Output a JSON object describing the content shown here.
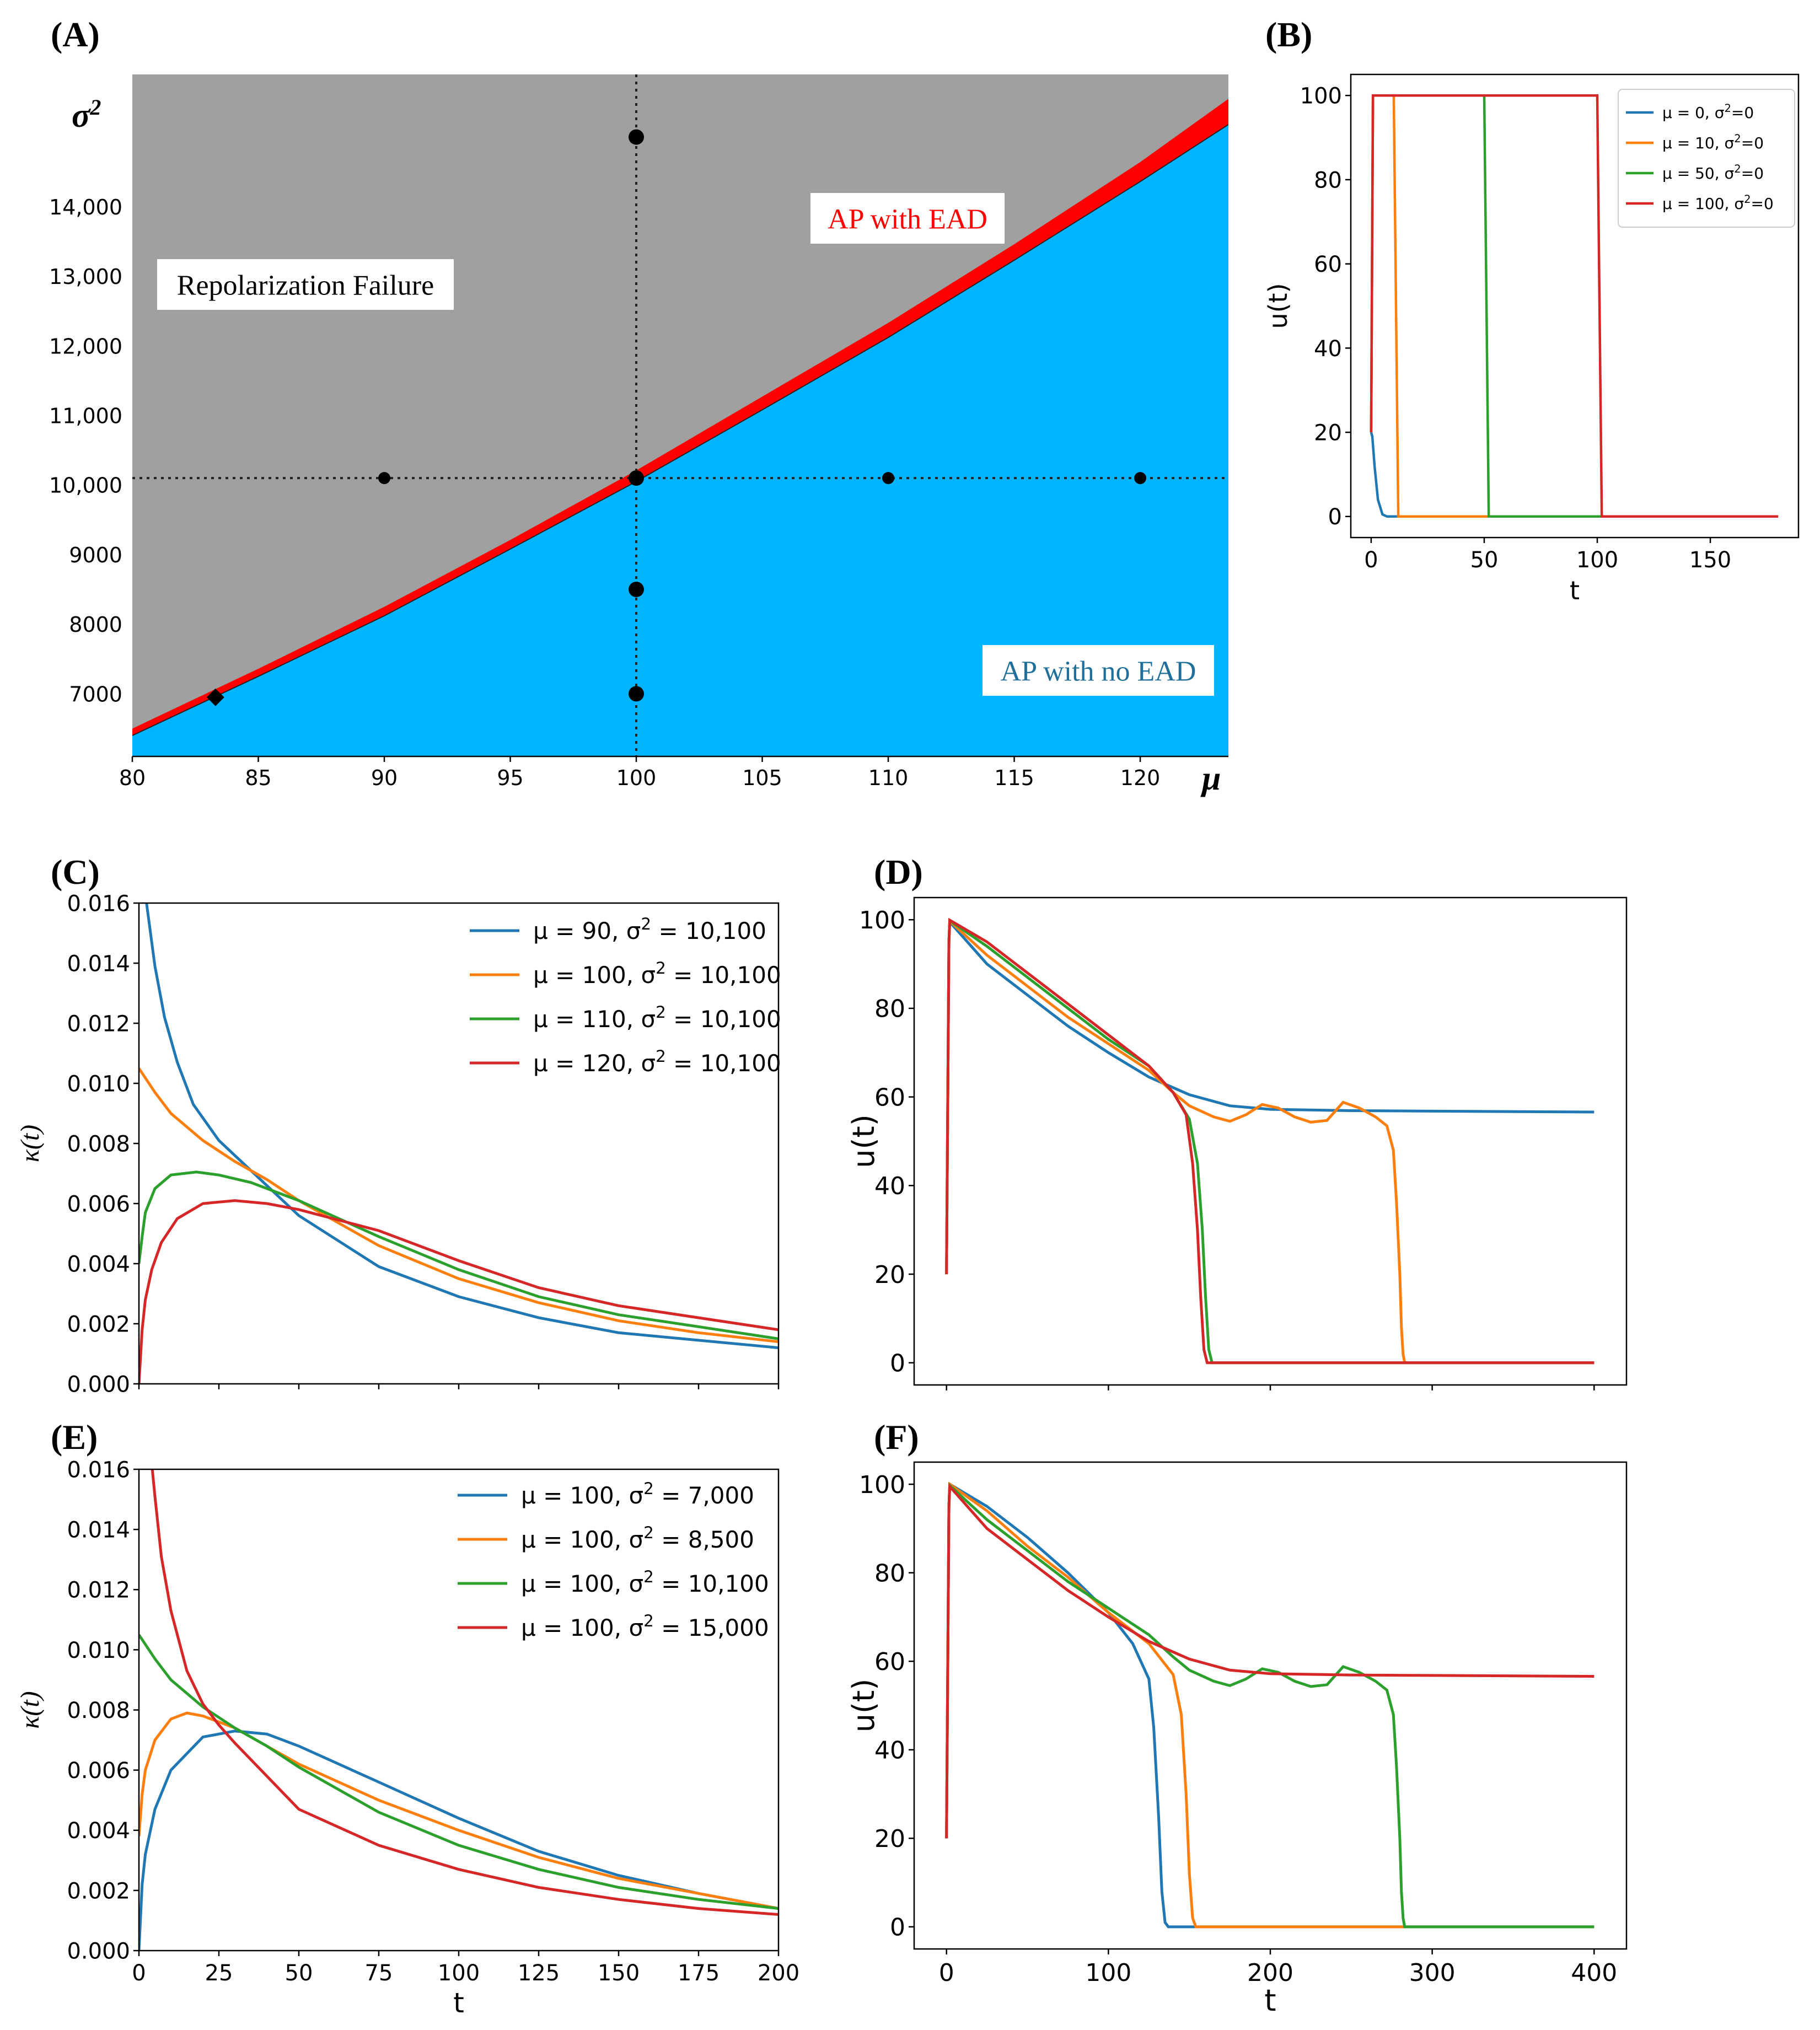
{
  "figure": {
    "panel_labels": [
      "(A)",
      "(B)",
      "(C)",
      "(D)",
      "(E)",
      "(F)"
    ]
  },
  "chart_data": [
    {
      "panel": "(A)",
      "type": "area",
      "title": "",
      "xlabel": "μ",
      "ylabel": "σ²",
      "xlim": [
        80,
        123.5
      ],
      "ylim": [
        6100,
        15900
      ],
      "xticks": [
        80,
        85,
        90,
        95,
        100,
        105,
        110,
        115,
        120
      ],
      "xtick_labels": [
        "80",
        "85",
        "90",
        "95",
        "100",
        "105",
        "110",
        "115",
        "120"
      ],
      "yticks": [
        7000,
        8000,
        9000,
        10000,
        11000,
        12000,
        13000,
        14000
      ],
      "ytick_labels": [
        "7000",
        "8000",
        "9000",
        "10,000",
        "11,000",
        "12,000",
        "13,000",
        "14,000"
      ],
      "regions": [
        {
          "name": "Repolarization Failure",
          "color": "#a0a0a0"
        },
        {
          "name": "AP with EAD",
          "color": "#ff0000"
        },
        {
          "name": "AP with no EAD",
          "color": "#00b4ff"
        }
      ],
      "boundary_lower": {
        "x": [
          80,
          85,
          90,
          95,
          100,
          105,
          110,
          115,
          120,
          123.5
        ],
        "y": [
          6400,
          7250,
          8120,
          9080,
          10050,
          11080,
          12120,
          13230,
          14360,
          15180
        ]
      },
      "boundary_upper": {
        "x": [
          80,
          85,
          90,
          95,
          100,
          105,
          110,
          115,
          120,
          123.5
        ],
        "y": [
          6500,
          7360,
          8250,
          9210,
          10210,
          11270,
          12330,
          13460,
          14640,
          15550
        ]
      },
      "reference_lines": {
        "x": 100,
        "y": 10100
      },
      "points": [
        {
          "x": 100,
          "y": 15000
        },
        {
          "x": 90,
          "y": 10100
        },
        {
          "x": 100,
          "y": 10100
        },
        {
          "x": 110,
          "y": 10100
        },
        {
          "x": 120,
          "y": 10100
        },
        {
          "x": 100,
          "y": 8500
        },
        {
          "x": 100,
          "y": 7000
        }
      ],
      "diamond": {
        "x": 83.3,
        "y": 6950
      },
      "annotations": {
        "repolarization_failure": "Repolarization Failure",
        "ead": "AP with EAD",
        "no_ead": "AP with no EAD"
      }
    },
    {
      "panel": "(B)",
      "type": "line",
      "xlabel": "t",
      "ylabel": "u(t)",
      "xlim": [
        -9,
        189
      ],
      "ylim": [
        -5,
        105
      ],
      "xticks": [
        0,
        50,
        100,
        150
      ],
      "yticks": [
        0,
        20,
        40,
        60,
        80,
        100
      ],
      "series": [
        {
          "name": "μ = 0, σ²=0",
          "color": "#1f77b4",
          "x": [
            0,
            0.5,
            1.5,
            3,
            5,
            7,
            10,
            180
          ],
          "y": [
            20,
            19,
            12,
            4,
            0.5,
            0,
            0,
            0
          ]
        },
        {
          "name": "μ = 10, σ²=0",
          "color": "#ff7f0e",
          "x": [
            0,
            0.8,
            10,
            11,
            12,
            180
          ],
          "y": [
            20,
            100,
            100,
            50,
            0,
            0
          ]
        },
        {
          "name": "μ = 50, σ²=0",
          "color": "#2ca02c",
          "x": [
            0,
            0.8,
            50,
            51,
            52,
            180
          ],
          "y": [
            20,
            100,
            100,
            50,
            0,
            0
          ]
        },
        {
          "name": "μ = 100, σ²=0",
          "color": "#d62728",
          "x": [
            0,
            0.8,
            100,
            101,
            102,
            180
          ],
          "y": [
            20,
            100,
            100,
            50,
            0,
            0
          ]
        }
      ]
    },
    {
      "panel": "(C)",
      "type": "line",
      "xlabel": "",
      "ylabel": "κ(t)",
      "xlim": [
        0,
        200
      ],
      "ylim": [
        0,
        0.016
      ],
      "xticks": [
        0,
        25,
        50,
        75,
        100,
        125,
        150,
        175,
        200
      ],
      "yticks": [
        0,
        0.002,
        0.004,
        0.006,
        0.008,
        0.01,
        0.012,
        0.014,
        0.016
      ],
      "ytick_labels": [
        "0.000",
        "0.002",
        "0.004",
        "0.006",
        "0.008",
        "0.010",
        "0.012",
        "0.014",
        "0.016"
      ],
      "series": [
        {
          "name": "μ = 90, σ² = 10,100",
          "color": "#1f77b4",
          "x": [
            2,
            3,
            5,
            8,
            12,
            17,
            25,
            35,
            50,
            75,
            100,
            125,
            150,
            175,
            200
          ],
          "y": [
            0.0163,
            0.0155,
            0.0139,
            0.0122,
            0.0107,
            0.0093,
            0.0081,
            0.0071,
            0.0056,
            0.0039,
            0.0029,
            0.0022,
            0.0017,
            0.00145,
            0.0012
          ]
        },
        {
          "name": "μ = 100, σ² = 10,100",
          "color": "#ff7f0e",
          "x": [
            0,
            5,
            10,
            20,
            30,
            40,
            50,
            75,
            100,
            125,
            150,
            175,
            200
          ],
          "y": [
            0.0105,
            0.0097,
            0.009,
            0.0081,
            0.0074,
            0.0068,
            0.0061,
            0.0046,
            0.0035,
            0.0027,
            0.0021,
            0.0017,
            0.0014
          ]
        },
        {
          "name": "μ = 110, σ² = 10,100",
          "color": "#2ca02c",
          "x": [
            0,
            1,
            2,
            5,
            10,
            18,
            25,
            35,
            50,
            75,
            100,
            125,
            150,
            175,
            200
          ],
          "y": [
            0.004,
            0.0049,
            0.0057,
            0.0065,
            0.00695,
            0.00705,
            0.00695,
            0.0067,
            0.0061,
            0.0049,
            0.0038,
            0.0029,
            0.0023,
            0.0019,
            0.0015
          ]
        },
        {
          "name": "μ = 120, σ² = 10,100",
          "color": "#d62728",
          "x": [
            0,
            1,
            2,
            4,
            7,
            12,
            20,
            30,
            40,
            50,
            75,
            100,
            125,
            150,
            175,
            200
          ],
          "y": [
            0,
            0.0018,
            0.0028,
            0.0038,
            0.0047,
            0.0055,
            0.006,
            0.0061,
            0.006,
            0.0058,
            0.0051,
            0.0041,
            0.0032,
            0.0026,
            0.0022,
            0.0018
          ]
        }
      ]
    },
    {
      "panel": "(D)",
      "type": "line",
      "xlabel": "",
      "ylabel": "u(t)",
      "xlim": [
        -20,
        420
      ],
      "ylim": [
        -5,
        105
      ],
      "xticks": [
        0,
        100,
        200,
        300,
        400
      ],
      "yticks": [
        0,
        20,
        40,
        60,
        80,
        100
      ],
      "series": [
        {
          "name": "μ = 90, σ² = 10,100",
          "color": "#1f77b4",
          "x": [
            0,
            1.5,
            2,
            25,
            50,
            75,
            100,
            125,
            150,
            175,
            200,
            250,
            300,
            400
          ],
          "y": [
            20,
            95,
            99.5,
            90,
            83,
            76,
            70,
            64.5,
            60.5,
            58,
            57.2,
            56.9,
            56.8,
            56.6
          ]
        },
        {
          "name": "μ = 100, σ² = 10,100",
          "color": "#ff7f0e",
          "x": [
            0,
            1.5,
            2,
            25,
            50,
            75,
            100,
            125,
            140,
            150,
            165,
            175,
            185,
            195,
            205,
            215,
            225,
            235,
            245,
            255,
            265,
            272,
            276,
            278,
            280,
            281,
            282,
            283,
            400
          ],
          "y": [
            20,
            95,
            99.7,
            92,
            85,
            78,
            72,
            66,
            61,
            58,
            55.5,
            54.5,
            56,
            58.3,
            57.5,
            55.5,
            54.3,
            54.7,
            58.8,
            57.5,
            55.5,
            53.5,
            48,
            36,
            20,
            8,
            2,
            0,
            0
          ]
        },
        {
          "name": "μ = 110, σ² = 10,100",
          "color": "#2ca02c",
          "x": [
            0,
            1.5,
            2,
            25,
            50,
            75,
            100,
            125,
            140,
            150,
            155,
            158,
            160,
            162,
            164,
            400
          ],
          "y": [
            20,
            95,
            99.8,
            94,
            87,
            80,
            73,
            67,
            61,
            55,
            45,
            30,
            15,
            3,
            0,
            0
          ]
        },
        {
          "name": "μ = 120, σ² = 10,100",
          "color": "#d62728",
          "x": [
            0,
            1.5,
            2,
            25,
            50,
            75,
            100,
            125,
            140,
            148,
            152,
            155,
            157,
            159,
            161,
            400
          ],
          "y": [
            20,
            95,
            99.9,
            95,
            88,
            81,
            74,
            67,
            61,
            56,
            45,
            30,
            15,
            3,
            0,
            0
          ]
        }
      ]
    },
    {
      "panel": "(E)",
      "type": "line",
      "xlabel": "t",
      "ylabel": "κ(t)",
      "xlim": [
        0,
        200
      ],
      "ylim": [
        0,
        0.016
      ],
      "xticks": [
        0,
        25,
        50,
        75,
        100,
        125,
        150,
        175,
        200
      ],
      "yticks": [
        0,
        0.002,
        0.004,
        0.006,
        0.008,
        0.01,
        0.012,
        0.014,
        0.016
      ],
      "ytick_labels": [
        "0.000",
        "0.002",
        "0.004",
        "0.006",
        "0.008",
        "0.010",
        "0.012",
        "0.014",
        "0.016"
      ],
      "series": [
        {
          "name": "μ = 100, σ² = 7,000",
          "color": "#1f77b4",
          "x": [
            0,
            1,
            2,
            5,
            10,
            20,
            30,
            40,
            50,
            75,
            100,
            125,
            150,
            175,
            200
          ],
          "y": [
            0,
            0.0022,
            0.0032,
            0.0047,
            0.006,
            0.0071,
            0.0073,
            0.0072,
            0.0068,
            0.0056,
            0.0044,
            0.0033,
            0.0025,
            0.0019,
            0.0014
          ]
        },
        {
          "name": "μ = 100, σ² = 8,500",
          "color": "#ff7f0e",
          "x": [
            0,
            1,
            2,
            5,
            10,
            15,
            20,
            30,
            40,
            50,
            75,
            100,
            125,
            150,
            175,
            200
          ],
          "y": [
            0.0038,
            0.0052,
            0.006,
            0.007,
            0.0077,
            0.0079,
            0.0078,
            0.0074,
            0.0068,
            0.0062,
            0.005,
            0.004,
            0.0031,
            0.0024,
            0.0019,
            0.0014
          ]
        },
        {
          "name": "μ = 100, σ² = 10,100",
          "color": "#2ca02c",
          "x": [
            0,
            5,
            10,
            20,
            30,
            40,
            50,
            75,
            100,
            125,
            150,
            175,
            200
          ],
          "y": [
            0.0105,
            0.0097,
            0.009,
            0.0081,
            0.0074,
            0.0068,
            0.0061,
            0.0046,
            0.0035,
            0.0027,
            0.0021,
            0.0017,
            0.0014
          ]
        },
        {
          "name": "μ = 100, σ² = 15,000",
          "color": "#d62728",
          "x": [
            4,
            5,
            7,
            10,
            15,
            20,
            25,
            30,
            40,
            50,
            75,
            100,
            125,
            150,
            175,
            200
          ],
          "y": [
            0.0162,
            0.0151,
            0.0131,
            0.0113,
            0.0093,
            0.0082,
            0.0075,
            0.0069,
            0.0058,
            0.0047,
            0.0035,
            0.0027,
            0.0021,
            0.0017,
            0.0014,
            0.0012
          ]
        }
      ]
    },
    {
      "panel": "(F)",
      "type": "line",
      "xlabel": "t",
      "ylabel": "u(t)",
      "xlim": [
        -20,
        420
      ],
      "ylim": [
        -5,
        105
      ],
      "xticks": [
        0,
        100,
        200,
        300,
        400
      ],
      "yticks": [
        0,
        20,
        40,
        60,
        80,
        100
      ],
      "series": [
        {
          "name": "μ = 100, σ² = 7,000",
          "color": "#1f77b4",
          "x": [
            0,
            1.5,
            2,
            25,
            50,
            75,
            100,
            115,
            125,
            128,
            131,
            133,
            135,
            137,
            400
          ],
          "y": [
            20,
            95,
            100,
            95,
            88,
            80,
            71,
            64,
            56,
            45,
            25,
            8,
            1,
            0,
            0
          ]
        },
        {
          "name": "μ = 100, σ² = 8,500",
          "color": "#ff7f0e",
          "x": [
            0,
            1.5,
            2,
            25,
            50,
            75,
            100,
            125,
            140,
            145,
            148,
            150,
            152,
            154,
            400
          ],
          "y": [
            20,
            95,
            100,
            94,
            86,
            79,
            71,
            64,
            57,
            48,
            30,
            12,
            2,
            0,
            0
          ]
        },
        {
          "name": "μ = 100, σ² = 10,100",
          "color": "#2ca02c",
          "x": [
            0,
            1.5,
            2,
            25,
            50,
            75,
            100,
            125,
            140,
            150,
            165,
            175,
            185,
            195,
            205,
            215,
            225,
            235,
            245,
            255,
            265,
            272,
            276,
            278,
            280,
            281,
            282,
            283,
            400
          ],
          "y": [
            20,
            95,
            99.7,
            92,
            85,
            78,
            72,
            66,
            61,
            58,
            55.5,
            54.5,
            56,
            58.3,
            57.5,
            55.5,
            54.3,
            54.7,
            58.8,
            57.5,
            55.5,
            53.5,
            48,
            36,
            20,
            8,
            2,
            0,
            0
          ]
        },
        {
          "name": "μ = 100, σ² = 15,000",
          "color": "#d62728",
          "x": [
            0,
            1.5,
            2,
            25,
            50,
            75,
            100,
            125,
            150,
            175,
            200,
            250,
            300,
            400
          ],
          "y": [
            20,
            95,
            99.5,
            90,
            83,
            76,
            70,
            64.5,
            60.5,
            58,
            57.2,
            56.9,
            56.8,
            56.6
          ]
        }
      ]
    }
  ]
}
